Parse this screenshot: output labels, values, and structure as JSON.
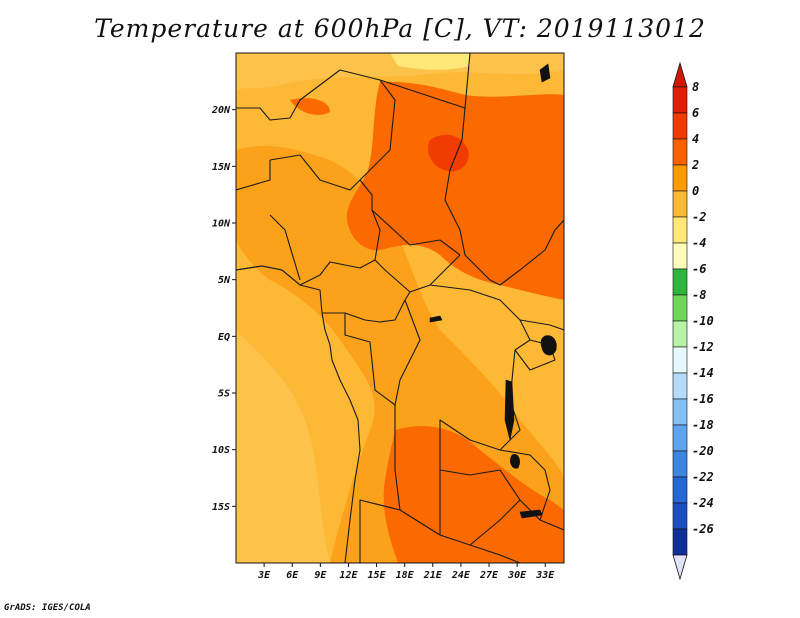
{
  "title": "Temperature at 600hPa [C], VT: 2019113012",
  "credit": "GrADS: IGES/COLA",
  "map": {
    "region": "Central Africa",
    "lat_range": [
      -20,
      25
    ],
    "lon_range": [
      0,
      35
    ],
    "lat_ticks": [
      {
        "value": 20,
        "label": "20N"
      },
      {
        "value": 15,
        "label": "15N"
      },
      {
        "value": 10,
        "label": "10N"
      },
      {
        "value": 5,
        "label": "5N"
      },
      {
        "value": 0,
        "label": "EQ"
      },
      {
        "value": -5,
        "label": "5S"
      },
      {
        "value": -10,
        "label": "10S"
      },
      {
        "value": -15,
        "label": "15S"
      }
    ],
    "lon_ticks": [
      {
        "value": 3,
        "label": "3E"
      },
      {
        "value": 6,
        "label": "6E"
      },
      {
        "value": 9,
        "label": "9E"
      },
      {
        "value": 12,
        "label": "12E"
      },
      {
        "value": 15,
        "label": "15E"
      },
      {
        "value": 18,
        "label": "18E"
      },
      {
        "value": 21,
        "label": "21E"
      },
      {
        "value": 24,
        "label": "24E"
      },
      {
        "value": 27,
        "label": "27E"
      },
      {
        "value": 30,
        "label": "30E"
      },
      {
        "value": 33,
        "label": "33E"
      }
    ]
  },
  "colorbar": {
    "bins": [
      {
        "label": "8",
        "color": "#e11f00"
      },
      {
        "label": "6",
        "color": "#f03c00"
      },
      {
        "label": "4",
        "color": "#fa6200"
      },
      {
        "label": "2",
        "color": "#fc9a00"
      },
      {
        "label": "0",
        "color": "#fdb935"
      },
      {
        "label": "-2",
        "color": "#ffe878"
      },
      {
        "label": "-4",
        "color": "#fefebc"
      },
      {
        "label": "-6",
        "color": "#2fb53c"
      },
      {
        "label": "-8",
        "color": "#6fd65a"
      },
      {
        "label": "-10",
        "color": "#b8f2a6"
      },
      {
        "label": "-12",
        "color": "#e5f8fb"
      },
      {
        "label": "-14",
        "color": "#b4dcfa"
      },
      {
        "label": "-16",
        "color": "#82c0f5"
      },
      {
        "label": "-18",
        "color": "#5ea4ee"
      },
      {
        "label": "-20",
        "color": "#3c86e0"
      },
      {
        "label": "-22",
        "color": "#2568d5"
      },
      {
        "label": "-24",
        "color": "#1a4dbd"
      },
      {
        "label": "-26",
        "color": "#0f2e96"
      }
    ],
    "bottom_color": "#0a0a5e",
    "top_arrow_color": "#d21800",
    "bottom_arrow_color": "#e0e0f8"
  }
}
